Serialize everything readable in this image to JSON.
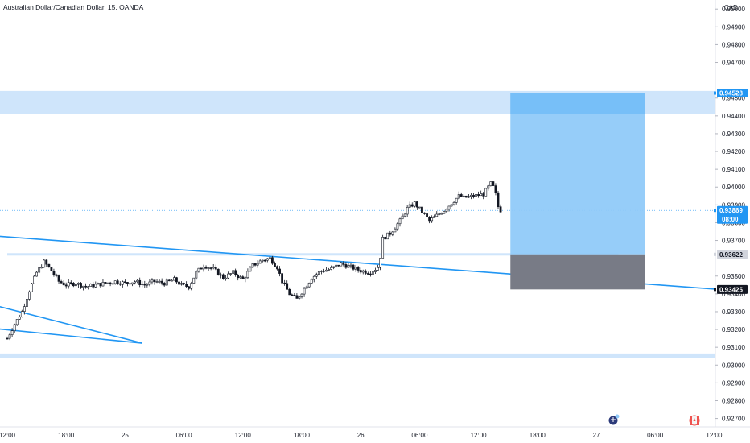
{
  "header": {
    "title": "Australian Dollar/Canadian Dollar, 15, OANDA"
  },
  "currency": "CAD",
  "colors": {
    "candle": "#131722",
    "zone": "#cfe5fb",
    "target": "#90caf9",
    "target_top": "#64b5f6",
    "stop": "#787b86",
    "trendline": "#2196f3",
    "badge_dark": "#131722",
    "badge_blue": "#2196f3",
    "badge_gray": "#d1d4dc"
  },
  "chart_data": {
    "type": "candlestick",
    "symbol": "Australian Dollar/Canadian Dollar",
    "interval": "15",
    "source": "OANDA",
    "y_ticks": [
      "0.95000",
      "0.94900",
      "0.94800",
      "0.94700",
      "0.94500",
      "0.94400",
      "0.94300",
      "0.94200",
      "0.94100",
      "0.94000",
      "0.93900",
      "0.93800",
      "0.93700",
      "0.93500",
      "0.93400",
      "0.93300",
      "0.93200",
      "0.93100",
      "0.93000",
      "0.92900",
      "0.92800",
      "0.92700"
    ],
    "y_tick_values": [
      0.95,
      0.949,
      0.948,
      0.947,
      0.945,
      0.944,
      0.943,
      0.942,
      0.941,
      0.94,
      0.939,
      0.938,
      0.937,
      0.935,
      0.934,
      0.933,
      0.932,
      0.931,
      0.93,
      0.929,
      0.928,
      0.927
    ],
    "ylim": [
      0.9268,
      0.9501
    ],
    "x_ticks": [
      {
        "label": "12:00",
        "slot": 0
      },
      {
        "label": "18:00",
        "slot": 24
      },
      {
        "label": "25",
        "slot": 48
      },
      {
        "label": "06:00",
        "slot": 72
      },
      {
        "label": "12:00",
        "slot": 96
      },
      {
        "label": "18:00",
        "slot": 120
      },
      {
        "label": "26",
        "slot": 144
      },
      {
        "label": "06:00",
        "slot": 168
      },
      {
        "label": "12:00",
        "slot": 192
      },
      {
        "label": "18:00",
        "slot": 216
      },
      {
        "label": "27",
        "slot": 240
      },
      {
        "label": "06:00",
        "slot": 264
      },
      {
        "label": "12:00",
        "slot": 288
      }
    ],
    "price_anchors": [
      [
        0,
        0.9315
      ],
      [
        3,
        0.9323
      ],
      [
        6,
        0.933
      ],
      [
        9,
        0.9342
      ],
      [
        12,
        0.9352
      ],
      [
        15,
        0.9358
      ],
      [
        18,
        0.9353
      ],
      [
        21,
        0.9347
      ],
      [
        24,
        0.9345
      ],
      [
        28,
        0.9346
      ],
      [
        32,
        0.9344
      ],
      [
        36,
        0.9345
      ],
      [
        40,
        0.9346
      ],
      [
        44,
        0.9347
      ],
      [
        48,
        0.9346
      ],
      [
        52,
        0.9347
      ],
      [
        56,
        0.9345
      ],
      [
        60,
        0.9347
      ],
      [
        64,
        0.9346
      ],
      [
        68,
        0.9348
      ],
      [
        71,
        0.9345
      ],
      [
        74,
        0.9344
      ],
      [
        77,
        0.9352
      ],
      [
        80,
        0.9356
      ],
      [
        84,
        0.9354
      ],
      [
        88,
        0.9349
      ],
      [
        92,
        0.9352
      ],
      [
        96,
        0.9348
      ],
      [
        100,
        0.9356
      ],
      [
        104,
        0.9359
      ],
      [
        107,
        0.936
      ],
      [
        110,
        0.9355
      ],
      [
        112,
        0.9347
      ],
      [
        115,
        0.934
      ],
      [
        118,
        0.9337
      ],
      [
        121,
        0.9343
      ],
      [
        124,
        0.9349
      ],
      [
        128,
        0.9353
      ],
      [
        132,
        0.9354
      ],
      [
        136,
        0.9357
      ],
      [
        140,
        0.9355
      ],
      [
        144,
        0.9353
      ],
      [
        148,
        0.9352
      ],
      [
        151,
        0.9355
      ],
      [
        152,
        0.9361
      ],
      [
        153,
        0.9371
      ],
      [
        156,
        0.9374
      ],
      [
        160,
        0.9381
      ],
      [
        163,
        0.9388
      ],
      [
        166,
        0.9391
      ],
      [
        169,
        0.9386
      ],
      [
        172,
        0.9381
      ],
      [
        175,
        0.9384
      ],
      [
        178,
        0.9387
      ],
      [
        181,
        0.9391
      ],
      [
        184,
        0.9395
      ],
      [
        186,
        0.9394
      ],
      [
        190,
        0.9395
      ],
      [
        194,
        0.9396
      ],
      [
        197,
        0.9402
      ],
      [
        198,
        0.94
      ],
      [
        199,
        0.9396
      ],
      [
        200,
        0.9389
      ],
      [
        201,
        0.9387
      ]
    ],
    "zones": [
      {
        "name": "upper-zone",
        "from": 0.9441,
        "to": 0.9454
      },
      {
        "name": "lower-zone",
        "from": 0.9304,
        "to": 0.93065
      },
      {
        "name": "mid-line",
        "at": 0.93622,
        "from_slot": 0,
        "to_slot": 249
      }
    ],
    "position": {
      "from_slot": 205,
      "to_slot": 260,
      "take_profit": 0.94528,
      "entry": 0.93622,
      "stop": 0.93425
    },
    "trendlines": [
      {
        "x1": -5,
        "y1": 0.93725,
        "x2": 300,
        "y2": 0.93415
      },
      {
        "x1": -5,
        "y1": 0.93335,
        "x2": 55,
        "y2": 0.93123
      },
      {
        "x1": -5,
        "y1": 0.93205,
        "x2": 55,
        "y2": 0.93123
      }
    ],
    "last_price": "0.93869",
    "countdown": "08:00",
    "labels": {
      "take_profit": "0.94528",
      "entry": "0.93622",
      "stop": "0.93425"
    }
  }
}
